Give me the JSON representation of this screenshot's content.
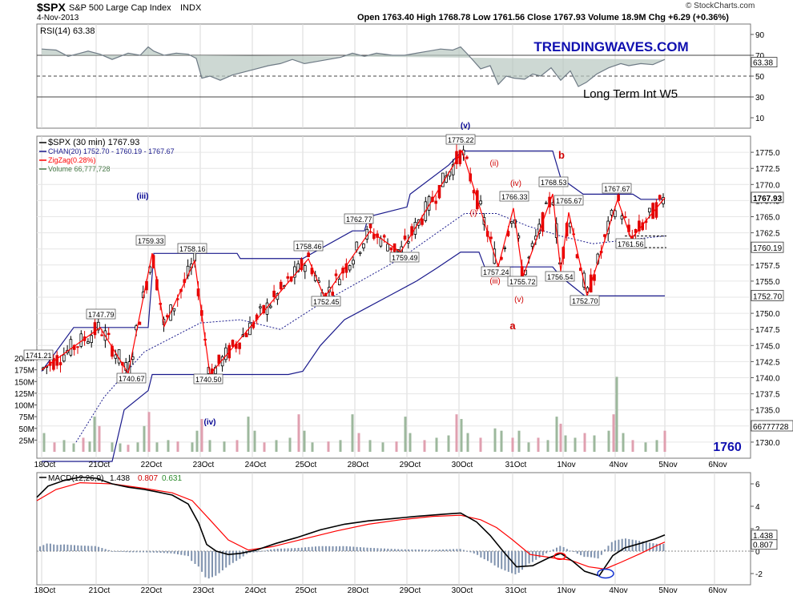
{
  "header": {
    "symbol": "$SPX",
    "name": "S&P 500 Large Cap Index",
    "exchange": "INDX",
    "date": "4-Nov-2013",
    "ohlc": "Open 1763.40   High 1768.78   Low 1761.56   Close 1767.93   Volume 18.9M   Chg +6.29 (+0.36%)",
    "credit": "© StockCharts.com"
  },
  "rsi_panel": {
    "label": "RSI(14) 63.38",
    "watermark": "TRENDINGWAVES.COM",
    "annotation": "Long Term Int W5",
    "ticks": [
      90,
      70,
      50,
      30,
      10
    ],
    "current_tag": "63.38"
  },
  "price_panel": {
    "legend": [
      {
        "text": "$SPX (30 min) 1767.93",
        "color": "#000000"
      },
      {
        "text": "CHAN(20) 1752.70 - 1760.19 - 1767.67",
        "color": "#1a1a8c"
      },
      {
        "text": "ZigZag(0.28%)",
        "color": "#ff0000"
      },
      {
        "text": "Volume 66,777,728",
        "color": "#4a7a4a"
      }
    ],
    "price_ticks": [
      "1775.0",
      "1772.5",
      "1770.0",
      "1767.5",
      "1765.0",
      "1762.5",
      "1760.0",
      "1757.5",
      "1755.0",
      "1752.5",
      "1750.0",
      "1747.5",
      "1745.0",
      "1742.5",
      "1740.0",
      "1737.5",
      "1735.0",
      "1732.5",
      "1730.0"
    ],
    "volume_ticks": [
      "200M",
      "175M",
      "150M",
      "125M",
      "100M",
      "75M",
      "50M",
      "25M"
    ],
    "tags": [
      "1767.93",
      "1760.19",
      "1752.70",
      "66777728"
    ],
    "corner_label": "1760",
    "price_labels": [
      "1741.21",
      "1747.79",
      "1740.67",
      "1759.33",
      "1758.16",
      "1740.50",
      "1758.46",
      "1752.45",
      "1762.77",
      "1759.49",
      "1775.22",
      "1757.24",
      "1766.33",
      "1755.72",
      "1768.53",
      "1765.67",
      "1756.54",
      "1752.70",
      "1767.67",
      "1761.56"
    ],
    "wave_labels": [
      "(iii)",
      "(iv)",
      "(v)",
      "(i)",
      "(ii)",
      "(iii)",
      "(iv)",
      "(v)",
      "b",
      "a"
    ]
  },
  "macd_panel": {
    "label": "MACD(12,26,9)",
    "values": [
      "1.438",
      "0.807",
      "0.631"
    ],
    "ticks": [
      "6",
      "4",
      "2",
      "0",
      "-2"
    ],
    "tags": [
      "1.438",
      "0.807"
    ]
  },
  "x_axis": {
    "labels": [
      "18Oct",
      "21Oct",
      "22Oct",
      "23Oct",
      "24Oct",
      "25Oct",
      "28Oct",
      "29Oct",
      "30Oct",
      "31Oct",
      "1Nov",
      "4Nov",
      "5Nov",
      "6Nov"
    ]
  },
  "chart_data": {
    "type": "line",
    "title": "$SPX S&P 500 Large Cap Index INDX",
    "x_unit": "trading session (30 min bars)",
    "zigzag": {
      "name": "ZigZag(0.28%)",
      "points": [
        {
          "label": "18Oct",
          "y": 1741.21
        },
        {
          "label": "21Oct",
          "y": 1747.79
        },
        {
          "label": "21Oct",
          "y": 1740.67
        },
        {
          "label": "22Oct",
          "y": 1759.33
        },
        {
          "label": "22Oct",
          "y": 1748.0
        },
        {
          "label": "22Oct",
          "y": 1758.16
        },
        {
          "label": "23Oct",
          "y": 1740.5
        },
        {
          "label": "25Oct",
          "y": 1758.46
        },
        {
          "label": "25Oct",
          "y": 1752.45
        },
        {
          "label": "28Oct",
          "y": 1762.77
        },
        {
          "label": "29Oct",
          "y": 1759.49
        },
        {
          "label": "30Oct",
          "y": 1775.22
        },
        {
          "label": "30Oct",
          "y": 1757.24
        },
        {
          "label": "31Oct",
          "y": 1766.33
        },
        {
          "label": "31Oct",
          "y": 1755.72
        },
        {
          "label": "1Nov",
          "y": 1768.53
        },
        {
          "label": "1Nov",
          "y": 1756.54
        },
        {
          "label": "1Nov",
          "y": 1765.67
        },
        {
          "label": "1Nov",
          "y": 1752.7
        },
        {
          "label": "4Nov",
          "y": 1767.67
        },
        {
          "label": "4Nov",
          "y": 1761.56
        },
        {
          "label": "4Nov",
          "y": 1767.93
        }
      ]
    },
    "channel_20": {
      "name": "CHAN(20)",
      "upper": 1767.67,
      "middle": 1760.19,
      "lower": 1752.7
    },
    "last_close": 1767.93,
    "last_volume": 66777728,
    "rsi_last": 63.38,
    "macd_last": {
      "macd": 1.438,
      "signal": 0.807,
      "histogram": 0.631
    },
    "ylim_price": [
      1727.5,
      1777.5
    ],
    "ylim_rsi": [
      0,
      100
    ],
    "ylim_macd": [
      -3,
      7
    ]
  },
  "colors": {
    "rsi_line": "#6e7a85",
    "up_candle": "#000000",
    "down_candle": "#e00000",
    "zigzag": "#ff0000",
    "channel": "#1a1a8c",
    "volume_up": "#9db89d",
    "volume_down": "#e0a0b0",
    "macd_line": "#000000",
    "signal_line": "#ff0000",
    "histogram": "#7f92ae",
    "watermark": "#1010b0",
    "wave_label": "#000090",
    "wave_label_red": "#d00000"
  }
}
